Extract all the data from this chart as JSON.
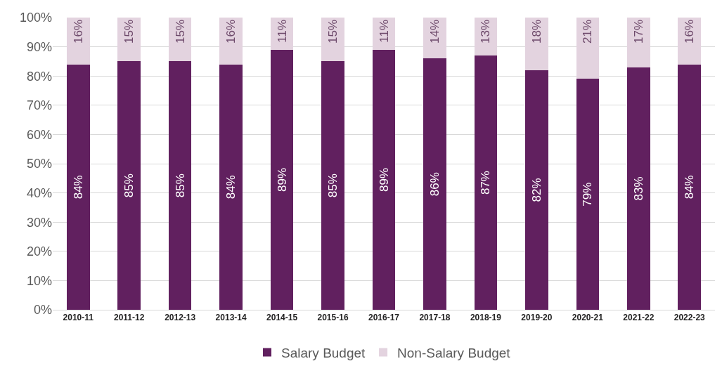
{
  "chart_data": {
    "type": "bar",
    "stacked": true,
    "categories": [
      "2010-11",
      "2011-12",
      "2012-13",
      "2013-14",
      "2014-15",
      "2015-16",
      "2016-17",
      "2017-18",
      "2018-19",
      "2019-20",
      "2020-21",
      "2021-22",
      "2022-23"
    ],
    "series": [
      {
        "name": "Salary Budget",
        "color": "#61205f",
        "values": [
          84,
          85,
          85,
          84,
          89,
          85,
          89,
          86,
          87,
          82,
          79,
          83,
          84
        ],
        "value_labels": [
          "84%",
          "85%",
          "85%",
          "84%",
          "89%",
          "85%",
          "89%",
          "86%",
          "87%",
          "82%",
          "79%",
          "83%",
          "84%"
        ]
      },
      {
        "name": "Non-Salary Budget",
        "color": "#e3d3df",
        "values": [
          16,
          15,
          15,
          16,
          11,
          15,
          11,
          14,
          13,
          18,
          21,
          17,
          16
        ],
        "value_labels": [
          "16%",
          "15%",
          "15%",
          "16%",
          "11%",
          "15%",
          "11%",
          "14%",
          "13%",
          "18%",
          "21%",
          "17%",
          "16%"
        ]
      }
    ],
    "ylim": [
      0,
      100
    ],
    "yticks": [
      {
        "value": 0,
        "label": "0%"
      },
      {
        "value": 10,
        "label": "10%"
      },
      {
        "value": 20,
        "label": "20%"
      },
      {
        "value": 30,
        "label": "30%"
      },
      {
        "value": 40,
        "label": "40%"
      },
      {
        "value": 50,
        "label": "50%"
      },
      {
        "value": 60,
        "label": "60%"
      },
      {
        "value": 70,
        "label": "70%"
      },
      {
        "value": 80,
        "label": "80%"
      },
      {
        "value": 90,
        "label": "90%"
      },
      {
        "value": 100,
        "label": "100%"
      }
    ],
    "grid": "y",
    "legend": "bottom"
  }
}
